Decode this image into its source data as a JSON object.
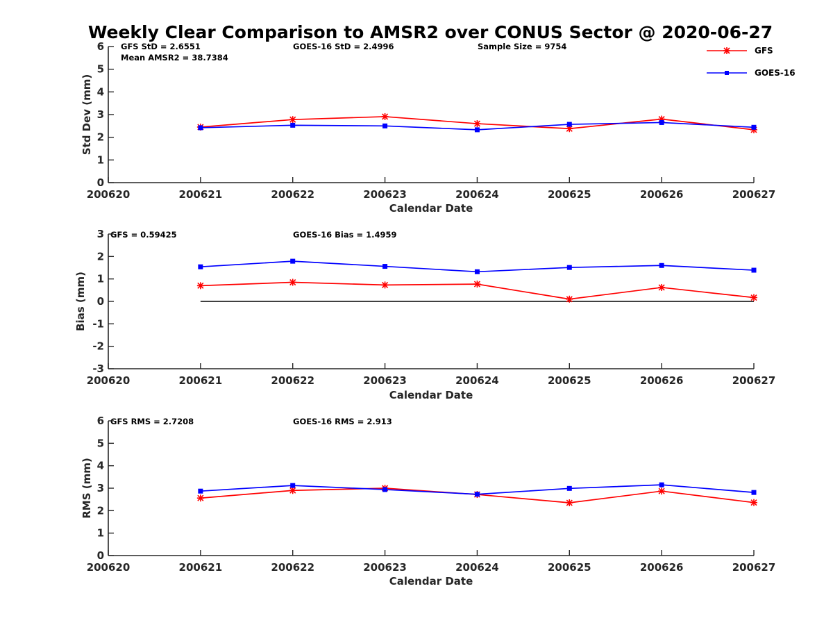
{
  "chart_data": [
    {
      "type": "line",
      "title": "Weekly Clear Comparison to AMSR2 over CONUS Sector @ 2020-06-27",
      "xlabel": "Calendar Date",
      "ylabel": "Std Dev (mm)",
      "x_ticks": [
        "200620",
        "200621",
        "200622",
        "200623",
        "200624",
        "200625",
        "200626",
        "200627"
      ],
      "y_ticks": [
        "0",
        "1",
        "2",
        "3",
        "4",
        "5",
        "6"
      ],
      "xlim": [
        0,
        7
      ],
      "ylim": [
        0,
        6
      ],
      "annotations": [
        "GFS StD = 2.6551",
        "Mean AMSR2 = 38.7384",
        "GOES-16 StD = 2.4996",
        "Sample Size = 9754"
      ],
      "legend": {
        "position": "top-right",
        "entries": [
          "GFS",
          "GOES-16"
        ]
      },
      "series": [
        {
          "name": "GFS",
          "color": "#ff0000",
          "marker": "asterisk",
          "x": [
            "200621",
            "200622",
            "200623",
            "200624",
            "200625",
            "200626",
            "200627"
          ],
          "values": [
            2.45,
            2.78,
            2.91,
            2.6,
            2.38,
            2.8,
            2.33
          ]
        },
        {
          "name": "GOES-16",
          "color": "#0000ff",
          "marker": "square",
          "x": [
            "200621",
            "200622",
            "200623",
            "200624",
            "200625",
            "200626",
            "200627"
          ],
          "values": [
            2.42,
            2.53,
            2.5,
            2.33,
            2.57,
            2.65,
            2.44
          ]
        }
      ]
    },
    {
      "type": "line",
      "xlabel": "Calendar Date",
      "ylabel": "Bias (mm)",
      "x_ticks": [
        "200620",
        "200621",
        "200622",
        "200623",
        "200624",
        "200625",
        "200626",
        "200627"
      ],
      "y_ticks": [
        "-3",
        "-2",
        "-1",
        "0",
        "1",
        "2",
        "3"
      ],
      "xlim": [
        0,
        7
      ],
      "ylim": [
        -3,
        3
      ],
      "annotations": [
        "GFS = 0.59425",
        "GOES-16 Bias  = 1.4959"
      ],
      "zero_line": {
        "color": "#000000",
        "x": [
          "200621",
          "200627"
        ],
        "value": 0
      },
      "series": [
        {
          "name": "GFS",
          "color": "#ff0000",
          "marker": "asterisk",
          "x": [
            "200621",
            "200622",
            "200623",
            "200624",
            "200625",
            "200626",
            "200627"
          ],
          "values": [
            0.7,
            0.85,
            0.73,
            0.77,
            0.1,
            0.62,
            0.17
          ]
        },
        {
          "name": "GOES-16",
          "color": "#0000ff",
          "marker": "square",
          "x": [
            "200621",
            "200622",
            "200623",
            "200624",
            "200625",
            "200626",
            "200627"
          ],
          "values": [
            1.54,
            1.79,
            1.56,
            1.32,
            1.51,
            1.6,
            1.39
          ]
        }
      ]
    },
    {
      "type": "line",
      "xlabel": "Calendar Date",
      "ylabel": "RMS (mm)",
      "x_ticks": [
        "200620",
        "200621",
        "200622",
        "200623",
        "200624",
        "200625",
        "200626",
        "200627"
      ],
      "y_ticks": [
        "0",
        "1",
        "2",
        "3",
        "4",
        "5",
        "6"
      ],
      "xlim": [
        0,
        7
      ],
      "ylim": [
        0,
        6
      ],
      "annotations": [
        "GFS RMS = 2.7208",
        "GOES-16 RMS = 2.913"
      ],
      "series": [
        {
          "name": "GFS",
          "color": "#ff0000",
          "marker": "asterisk",
          "x": [
            "200621",
            "200622",
            "200623",
            "200624",
            "200625",
            "200626",
            "200627"
          ],
          "values": [
            2.56,
            2.9,
            3.0,
            2.72,
            2.35,
            2.87,
            2.36
          ]
        },
        {
          "name": "GOES-16",
          "color": "#0000ff",
          "marker": "square",
          "x": [
            "200621",
            "200622",
            "200623",
            "200624",
            "200625",
            "200626",
            "200627"
          ],
          "values": [
            2.87,
            3.12,
            2.94,
            2.73,
            2.99,
            3.15,
            2.81
          ]
        }
      ]
    }
  ]
}
